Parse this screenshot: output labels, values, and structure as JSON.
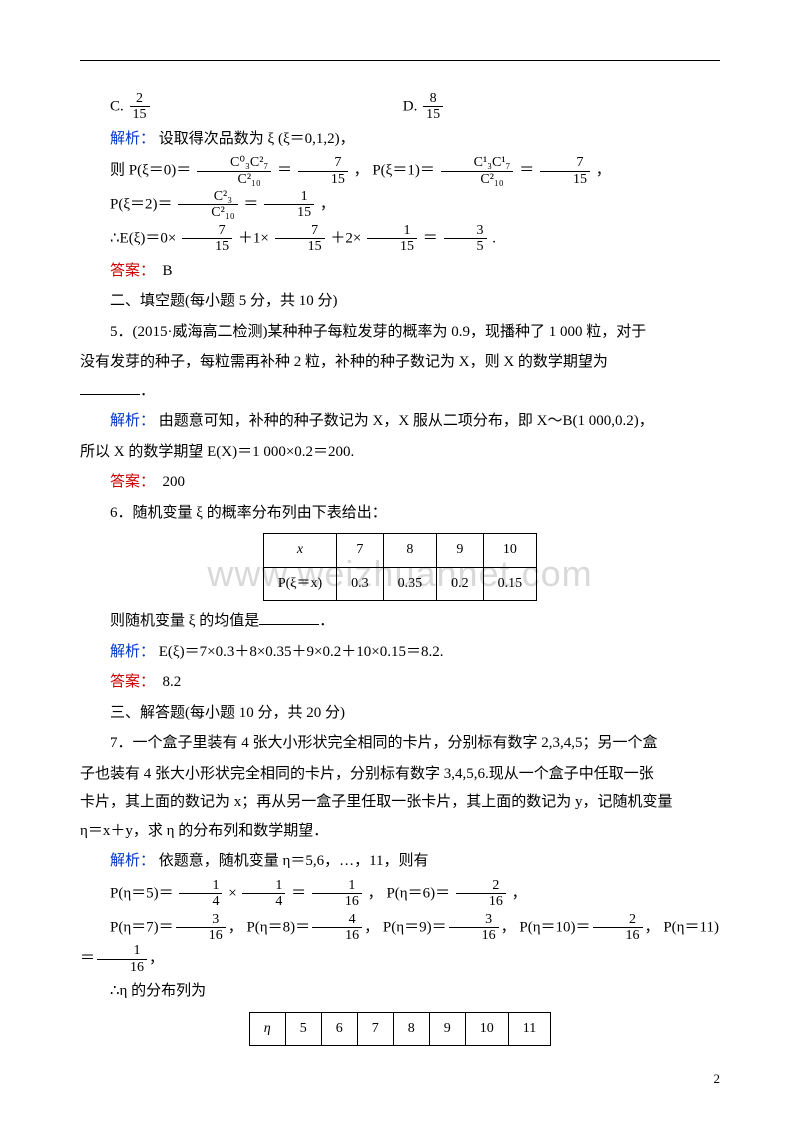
{
  "colors": {
    "blue": "#0033cc",
    "red": "#cc0000",
    "text": "#000000",
    "watermark": "#d9d9d9"
  },
  "watermark": "www.weizhuannet.com",
  "optC": {
    "label": "C.",
    "num": "2",
    "den": "15"
  },
  "optD": {
    "label": "D.",
    "num": "8",
    "den": "15"
  },
  "ln_jiexi": "解析：",
  "ln_set": "设取得次品数为 ξ (ξ＝0,1,2)，",
  "ln_then": "则 ",
  "p0": {
    "pre": "P(ξ＝0)＝",
    "n1": "C⁰₃C²₇",
    "d1": "C²₁₀",
    "eq": "＝",
    "n2": "7",
    "d2": "15",
    "post": "， "
  },
  "p1": {
    "pre": "P(ξ＝1)＝",
    "n1": "C¹₃C¹₇",
    "d1": "C²₁₀",
    "eq": "＝",
    "n2": "7",
    "d2": "15",
    "post": "，"
  },
  "p2": {
    "pre": "P(ξ＝2)＝",
    "n1": "C²₃",
    "d1": "C²₁₀",
    "eq": "＝",
    "n2": "1",
    "d2": "15",
    "post": "，"
  },
  "exp": {
    "pre": "∴E(ξ)＝0×",
    "f1n": "7",
    "f1d": "15",
    "mid1": "＋1×",
    "f2n": "7",
    "f2d": "15",
    "mid2": "＋2×",
    "f3n": "1",
    "f3d": "15",
    "mid3": "＝",
    "f4n": "3",
    "f4d": "5",
    "post": "."
  },
  "ans_label": "答案：",
  "ans4": "B",
  "sec2": "二、填空题(每小题 5 分，共 10 分)",
  "q5a": "5．(2015·威海高二检测)某种种子每粒发芽的概率为 0.9，现播种了 1  000 粒，对于",
  "q5b": "没有发芽的种子，每粒需再补种 2 粒，补种的种子数记为 X，则 X 的数学期望为",
  "q5blank": "．",
  "jx5a": "由题意可知，补种的种子数记为 X，X 服从二项分布，即 X～B(1  000,0.2)，",
  "jx5b": "所以 X 的数学期望 E(X)＝1  000×0.2＝200.",
  "ans5": "200",
  "q6": "6．随机变量 ξ 的概率分布列由下表给出：",
  "tbl6": {
    "h": [
      "x",
      "7",
      "8",
      "9",
      "10"
    ],
    "r": [
      "P(ξ＝x)",
      "0.3",
      "0.35",
      "0.2",
      "0.15"
    ]
  },
  "q6b": "则随机变量 ξ 的均值是",
  "jx6": "E(ξ)＝7×0.3＋8×0.35＋9×0.2＋10×0.15＝8.2.",
  "ans6": "8.2",
  "sec3": "三、解答题(每小题 10 分，共 20 分)",
  "q7a": "7．一个盒子里装有 4 张大小形状完全相同的卡片，分别标有数字 2,3,4,5；另一个盒",
  "q7b": "子也装有 4 张大小形状完全相同的卡片，分别标有数字 3,4,5,6.现从一个盒子中任取一张",
  "q7c": "卡片，其上面的数记为 x；再从另一盒子里任取一张卡片，其上面的数记为 y，记随机变量",
  "q7d": "η＝x＋y，求 η 的分布列和数学期望．",
  "jx7": "依题意，随机变量 η＝5,6，…，11，则有",
  "p5eq": {
    "pre": "P(η＝5)＝",
    "n1": "1",
    "d1": "4",
    "mid": " × ",
    "n2": "1",
    "d2": "4",
    "eq": "＝",
    "n3": "1",
    "d3": "16",
    "post": "， "
  },
  "p6eq": {
    "pre": "P(η＝6)＝",
    "n": "2",
    "d": "16",
    "post": "，"
  },
  "p7eq": {
    "pre": "P(η＝7)＝",
    "n": "3",
    "d": "16",
    "post": "， "
  },
  "p8eq": {
    "pre": "P(η＝8)＝",
    "n": "4",
    "d": "16",
    "post": "， "
  },
  "p9eq": {
    "pre": "P(η＝9)＝",
    "n": "3",
    "d": "16",
    "post": "， "
  },
  "p10eq": {
    "pre": "P(η＝10)＝",
    "n": "2",
    "d": "16",
    "post": "， "
  },
  "p11eq": {
    "pre": "P(η＝11)＝",
    "n": "1",
    "d": "16",
    "post": "，"
  },
  "dist": "∴η 的分布列为",
  "tbl7": {
    "h": [
      "η",
      "5",
      "6",
      "7",
      "8",
      "9",
      "10",
      "11"
    ]
  },
  "page": "2"
}
